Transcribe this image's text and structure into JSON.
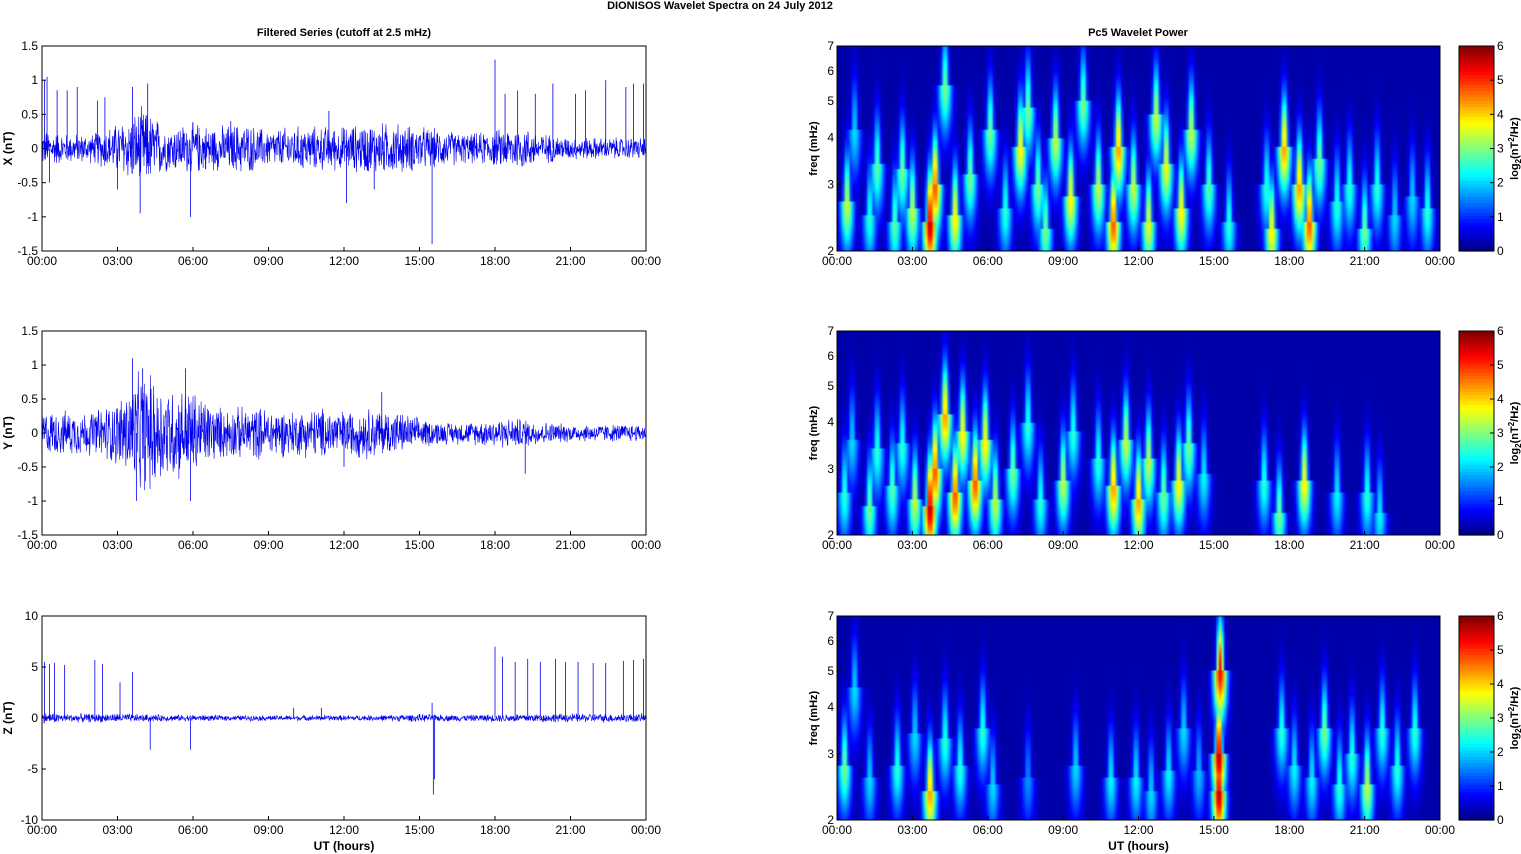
{
  "figure": {
    "suptitle": "DIONISOS Wavelet Spectra on 24 July      2012",
    "left_title": "Filtered Series (cutoff at 2.5 mHz)",
    "right_title": "Pc5 Wavelet Power",
    "xlabel": "UT (hours)"
  },
  "colors": {
    "trace": "#0000ee",
    "axis": "#000000",
    "map_background": "#00008f"
  },
  "chart_data": [
    {
      "type": "line",
      "ylabel": "X (nT)",
      "xticklabels": [
        "00:00",
        "03:00",
        "06:00",
        "09:00",
        "12:00",
        "15:00",
        "18:00",
        "21:00",
        "00:00"
      ],
      "xlim": [
        0,
        24
      ],
      "ylim": [
        -1.5,
        1.5
      ],
      "yticks": [
        -1.5,
        -1,
        -0.5,
        0,
        0.5,
        1,
        1.5
      ],
      "yticklabels": [
        "-1.5",
        "-1",
        "-0.5",
        "0",
        "0.5",
        "1",
        "1.5"
      ],
      "activity_hours": [
        0,
        1,
        2,
        3,
        4,
        5,
        6,
        7,
        8,
        9,
        10,
        11,
        12,
        13,
        14,
        15,
        16,
        17,
        18,
        19,
        20,
        21,
        22,
        23,
        24
      ],
      "noise_amplitude": [
        0.25,
        0.2,
        0.2,
        0.35,
        0.55,
        0.3,
        0.35,
        0.3,
        0.35,
        0.25,
        0.3,
        0.3,
        0.3,
        0.35,
        0.35,
        0.3,
        0.25,
        0.2,
        0.25,
        0.3,
        0.2,
        0.15,
        0.15,
        0.15,
        0.15
      ],
      "spikes": [
        [
          0.1,
          1.0
        ],
        [
          0.2,
          1.05
        ],
        [
          0.3,
          -0.5
        ],
        [
          0.6,
          0.85
        ],
        [
          1.0,
          0.85
        ],
        [
          1.4,
          0.9
        ],
        [
          2.2,
          0.7
        ],
        [
          2.5,
          0.75
        ],
        [
          3.0,
          -0.6
        ],
        [
          3.6,
          0.9
        ],
        [
          3.9,
          -0.95
        ],
        [
          4.2,
          0.95
        ],
        [
          5.9,
          -1.0
        ],
        [
          7.5,
          0.4
        ],
        [
          11.4,
          0.55
        ],
        [
          12.1,
          -0.8
        ],
        [
          13.2,
          -0.6
        ],
        [
          15.5,
          -1.4
        ],
        [
          18.0,
          1.3
        ],
        [
          18.4,
          0.8
        ],
        [
          18.9,
          0.85
        ],
        [
          19.6,
          0.8
        ],
        [
          20.3,
          0.95
        ],
        [
          21.2,
          0.8
        ],
        [
          21.6,
          0.85
        ],
        [
          22.4,
          1.0
        ],
        [
          23.2,
          0.9
        ],
        [
          23.5,
          0.95
        ],
        [
          23.9,
          0.95
        ]
      ]
    },
    {
      "type": "line",
      "ylabel": "Y (nT)",
      "xticklabels": [
        "00:00",
        "03:00",
        "06:00",
        "09:00",
        "12:00",
        "15:00",
        "18:00",
        "21:00",
        "00:00"
      ],
      "xlim": [
        0,
        24
      ],
      "ylim": [
        -1.5,
        1.5
      ],
      "yticks": [
        -1.5,
        -1,
        -0.5,
        0,
        0.5,
        1,
        1.5
      ],
      "yticklabels": [
        "-1.5",
        "-1",
        "-0.5",
        "0",
        "0.5",
        "1",
        "1.5"
      ],
      "activity_hours": [
        0,
        1,
        2,
        3,
        4,
        5,
        6,
        7,
        8,
        9,
        10,
        11,
        12,
        13,
        14,
        15,
        16,
        17,
        18,
        19,
        20,
        21,
        22,
        23,
        24
      ],
      "noise_amplitude": [
        0.3,
        0.3,
        0.3,
        0.45,
        0.85,
        0.65,
        0.6,
        0.35,
        0.35,
        0.35,
        0.3,
        0.35,
        0.3,
        0.35,
        0.3,
        0.2,
        0.15,
        0.15,
        0.2,
        0.2,
        0.15,
        0.12,
        0.12,
        0.12,
        0.12
      ],
      "spikes": [
        [
          3.6,
          1.1
        ],
        [
          3.75,
          -1.0
        ],
        [
          4.0,
          0.95
        ],
        [
          5.7,
          0.95
        ],
        [
          5.9,
          -1.0
        ],
        [
          12.0,
          -0.5
        ],
        [
          19.2,
          -0.6
        ],
        [
          13.5,
          0.6
        ]
      ]
    },
    {
      "type": "line",
      "ylabel": "Z (nT)",
      "xlabel": "UT (hours)",
      "xticklabels": [
        "00:00",
        "03:00",
        "06:00",
        "09:00",
        "12:00",
        "15:00",
        "18:00",
        "21:00",
        "00:00"
      ],
      "xlim": [
        0,
        24
      ],
      "ylim": [
        -10,
        10
      ],
      "yticks": [
        -10,
        -5,
        0,
        5,
        10
      ],
      "yticklabels": [
        "-10",
        "-5",
        "0",
        "5",
        "10"
      ],
      "activity_hours": [
        0,
        1,
        2,
        3,
        4,
        5,
        6,
        7,
        8,
        9,
        10,
        11,
        12,
        13,
        14,
        15,
        16,
        17,
        18,
        19,
        20,
        21,
        22,
        23,
        24
      ],
      "noise_amplitude": [
        0.5,
        0.4,
        0.4,
        0.4,
        0.35,
        0.3,
        0.3,
        0.25,
        0.25,
        0.25,
        0.25,
        0.25,
        0.25,
        0.25,
        0.3,
        0.35,
        0.3,
        0.3,
        0.35,
        0.4,
        0.4,
        0.4,
        0.4,
        0.4,
        0.4
      ],
      "spikes": [
        [
          0.1,
          5.5
        ],
        [
          0.3,
          5.3
        ],
        [
          0.5,
          5.4
        ],
        [
          0.9,
          5.2
        ],
        [
          2.1,
          5.7
        ],
        [
          2.4,
          5.3
        ],
        [
          3.1,
          3.5
        ],
        [
          3.6,
          4.5
        ],
        [
          4.3,
          -3.1
        ],
        [
          5.9,
          -3.1
        ],
        [
          10.0,
          1.0
        ],
        [
          11.1,
          1.0
        ],
        [
          15.5,
          1.5
        ],
        [
          15.55,
          -7.5
        ],
        [
          15.6,
          -6.0
        ],
        [
          18.0,
          7.0
        ],
        [
          18.3,
          6.0
        ],
        [
          18.8,
          5.5
        ],
        [
          19.3,
          5.8
        ],
        [
          19.8,
          5.5
        ],
        [
          20.4,
          5.8
        ],
        [
          20.8,
          5.5
        ],
        [
          21.3,
          5.5
        ],
        [
          21.9,
          5.4
        ],
        [
          22.4,
          5.4
        ],
        [
          23.1,
          5.6
        ],
        [
          23.5,
          5.7
        ],
        [
          23.9,
          5.8
        ]
      ]
    },
    {
      "type": "heatmap",
      "ylabel": "freq (mHz)",
      "xticklabels": [
        "00:00",
        "03:00",
        "06:00",
        "09:00",
        "12:00",
        "15:00",
        "18:00",
        "21:00",
        "00:00"
      ],
      "xlim": [
        0,
        24
      ],
      "ylim": [
        2,
        7
      ],
      "yscale": "log",
      "yticks": [
        2,
        3,
        4,
        5,
        6,
        7
      ],
      "yticklabels": [
        "2",
        "3",
        "4",
        "5",
        "6",
        "7"
      ],
      "colorbar": {
        "label": "log2(nT^2/Hz)",
        "label_base": "log",
        "label_sub": "2",
        "label_mid": "(nT",
        "label_sup": "2",
        "label_end": "/Hz)",
        "ticks": [
          0,
          1,
          2,
          3,
          4,
          5,
          6
        ],
        "ticklabels": [
          "0",
          "1",
          "2",
          "3",
          "4",
          "5",
          "6"
        ],
        "range": [
          0,
          6
        ]
      },
      "blobs": [
        [
          0.4,
          2.7,
          3.5
        ],
        [
          0.7,
          4.2,
          2.0
        ],
        [
          1.3,
          2.5,
          2.5
        ],
        [
          1.6,
          3.4,
          2.8
        ],
        [
          2.3,
          2.4,
          2.8
        ],
        [
          2.6,
          3.3,
          3.0
        ],
        [
          3.0,
          2.6,
          3.5
        ],
        [
          3.7,
          2.4,
          6.0
        ],
        [
          3.9,
          3.0,
          5.0
        ],
        [
          4.3,
          5.5,
          3.0
        ],
        [
          4.7,
          2.5,
          4.0
        ],
        [
          5.3,
          3.2,
          3.0
        ],
        [
          6.1,
          4.2,
          3.0
        ],
        [
          6.7,
          2.6,
          2.5
        ],
        [
          7.3,
          3.8,
          4.0
        ],
        [
          7.6,
          4.8,
          3.0
        ],
        [
          8.0,
          3.0,
          3.0
        ],
        [
          8.3,
          2.3,
          3.0
        ],
        [
          8.7,
          4.0,
          3.5
        ],
        [
          9.3,
          2.8,
          4.0
        ],
        [
          9.8,
          5.0,
          3.0
        ],
        [
          10.4,
          3.0,
          3.5
        ],
        [
          11.0,
          2.4,
          5.0
        ],
        [
          11.2,
          3.8,
          4.5
        ],
        [
          11.8,
          3.0,
          3.5
        ],
        [
          12.4,
          2.4,
          3.8
        ],
        [
          12.7,
          4.6,
          3.5
        ],
        [
          13.1,
          3.4,
          3.8
        ],
        [
          13.7,
          2.6,
          4.0
        ],
        [
          14.1,
          4.2,
          3.5
        ],
        [
          14.8,
          3.0,
          2.8
        ],
        [
          15.6,
          2.4,
          2.5
        ],
        [
          17.1,
          3.0,
          2.5
        ],
        [
          17.3,
          2.3,
          4.0
        ],
        [
          17.8,
          3.8,
          4.5
        ],
        [
          18.4,
          3.0,
          4.5
        ],
        [
          18.8,
          2.4,
          5.0
        ],
        [
          19.2,
          3.5,
          3.0
        ],
        [
          19.9,
          2.7,
          2.5
        ],
        [
          20.4,
          3.0,
          2.5
        ],
        [
          21.0,
          2.3,
          3.0
        ],
        [
          21.5,
          3.0,
          2.5
        ],
        [
          22.2,
          2.5,
          2.0
        ],
        [
          22.9,
          2.8,
          2.0
        ],
        [
          23.5,
          2.6,
          2.5
        ]
      ]
    },
    {
      "type": "heatmap",
      "ylabel": "freq (mHz)",
      "xticklabels": [
        "00:00",
        "03:00",
        "06:00",
        "09:00",
        "12:00",
        "15:00",
        "18:00",
        "21:00",
        "00:00"
      ],
      "xlim": [
        0,
        24
      ],
      "ylim": [
        2,
        7
      ],
      "yscale": "log",
      "yticks": [
        2,
        3,
        4,
        5,
        6,
        7
      ],
      "yticklabels": [
        "2",
        "3",
        "4",
        "5",
        "6",
        "7"
      ],
      "colorbar": {
        "label": "log2(nT^2/Hz)",
        "label_base": "log",
        "label_sub": "2",
        "label_mid": "(nT",
        "label_sup": "2",
        "label_end": "/Hz)",
        "ticks": [
          0,
          1,
          2,
          3,
          4,
          5,
          6
        ],
        "ticklabels": [
          "0",
          "1",
          "2",
          "3",
          "4",
          "5",
          "6"
        ],
        "range": [
          0,
          6
        ]
      },
      "blobs": [
        [
          0.3,
          2.6,
          2.5
        ],
        [
          0.6,
          3.6,
          2.0
        ],
        [
          1.3,
          2.4,
          3.0
        ],
        [
          1.6,
          3.4,
          2.5
        ],
        [
          2.2,
          2.7,
          2.8
        ],
        [
          2.6,
          3.5,
          2.5
        ],
        [
          3.1,
          2.5,
          3.5
        ],
        [
          3.7,
          2.4,
          6.0
        ],
        [
          3.9,
          3.0,
          5.0
        ],
        [
          4.3,
          4.2,
          4.5
        ],
        [
          4.7,
          2.6,
          5.0
        ],
        [
          5.0,
          3.8,
          4.0
        ],
        [
          5.5,
          2.8,
          5.0
        ],
        [
          5.9,
          3.6,
          4.0
        ],
        [
          6.3,
          2.5,
          3.5
        ],
        [
          7.0,
          3.0,
          3.0
        ],
        [
          7.6,
          4.0,
          2.5
        ],
        [
          8.1,
          2.5,
          2.5
        ],
        [
          9.0,
          2.8,
          3.5
        ],
        [
          9.4,
          3.8,
          2.5
        ],
        [
          10.4,
          3.2,
          2.5
        ],
        [
          11.0,
          2.7,
          4.5
        ],
        [
          11.5,
          3.6,
          3.5
        ],
        [
          12.0,
          2.5,
          4.5
        ],
        [
          12.4,
          3.2,
          3.5
        ],
        [
          13.0,
          2.6,
          3.0
        ],
        [
          13.6,
          2.8,
          4.0
        ],
        [
          14.0,
          3.5,
          3.0
        ],
        [
          14.6,
          2.9,
          2.2
        ],
        [
          17.0,
          2.8,
          2.5
        ],
        [
          17.6,
          2.3,
          3.0
        ],
        [
          18.6,
          2.8,
          4.0
        ],
        [
          19.9,
          2.6,
          2.2
        ],
        [
          21.1,
          2.6,
          2.5
        ],
        [
          21.6,
          2.3,
          2.2
        ]
      ]
    },
    {
      "type": "heatmap",
      "ylabel": "freq (mHz)",
      "xlabel": "UT (hours)",
      "xticklabels": [
        "00:00",
        "03:00",
        "06:00",
        "09:00",
        "12:00",
        "15:00",
        "18:00",
        "21:00",
        "00:00"
      ],
      "xlim": [
        0,
        24
      ],
      "ylim": [
        2,
        7
      ],
      "yscale": "log",
      "yticks": [
        2,
        3,
        4,
        5,
        6,
        7
      ],
      "yticklabels": [
        "2",
        "3",
        "4",
        "5",
        "6",
        "7"
      ],
      "colorbar": {
        "label": "log2(nT^2/Hz)",
        "label_base": "log",
        "label_sub": "2",
        "label_mid": "(nT",
        "label_sup": "2",
        "label_end": "/Hz)",
        "ticks": [
          0,
          1,
          2,
          3,
          4,
          5,
          6
        ],
        "ticklabels": [
          "0",
          "1",
          "2",
          "3",
          "4",
          "5",
          "6"
        ],
        "range": [
          0,
          6
        ]
      },
      "blobs": [
        [
          0.3,
          2.8,
          3.0
        ],
        [
          0.7,
          4.5,
          2.0
        ],
        [
          1.3,
          2.6,
          2.0
        ],
        [
          2.4,
          2.8,
          2.5
        ],
        [
          3.1,
          3.4,
          2.0
        ],
        [
          3.7,
          2.4,
          4.5
        ],
        [
          4.3,
          3.3,
          2.5
        ],
        [
          4.9,
          2.8,
          2.5
        ],
        [
          5.8,
          3.5,
          2.5
        ],
        [
          6.2,
          2.5,
          2.0
        ],
        [
          7.6,
          2.6,
          1.5
        ],
        [
          9.5,
          2.8,
          2.0
        ],
        [
          10.9,
          2.6,
          2.2
        ],
        [
          11.9,
          2.6,
          2.2
        ],
        [
          12.5,
          2.4,
          2.0
        ],
        [
          13.2,
          2.7,
          2.2
        ],
        [
          13.8,
          3.5,
          2.0
        ],
        [
          14.4,
          2.7,
          1.8
        ],
        [
          15.2,
          3.0,
          6.0
        ],
        [
          15.25,
          5.0,
          5.5
        ],
        [
          15.2,
          2.4,
          6.0
        ],
        [
          17.7,
          3.5,
          2.5
        ],
        [
          18.2,
          2.8,
          2.2
        ],
        [
          18.9,
          2.6,
          2.2
        ],
        [
          19.4,
          3.5,
          3.0
        ],
        [
          20.0,
          2.5,
          2.5
        ],
        [
          20.5,
          3.0,
          2.5
        ],
        [
          21.1,
          2.5,
          3.5
        ],
        [
          21.7,
          3.5,
          2.5
        ],
        [
          22.3,
          2.8,
          2.5
        ],
        [
          23.0,
          3.5,
          2.5
        ]
      ]
    }
  ]
}
